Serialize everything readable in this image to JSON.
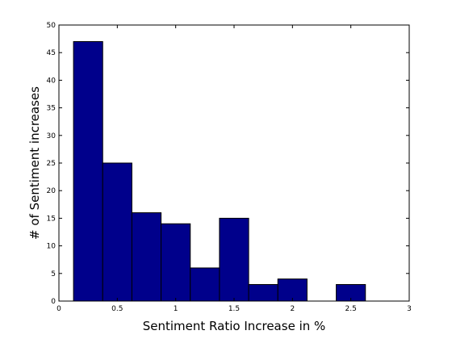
{
  "chart_data": {
    "type": "bar",
    "title": "",
    "xlabel": "Sentiment Ratio Increase in %",
    "ylabel": "# of Sentiment increases",
    "xlim": [
      0,
      3
    ],
    "ylim": [
      0,
      50
    ],
    "x_ticks": [
      "0",
      "0.5",
      "1",
      "1.5",
      "2",
      "2.5",
      "3"
    ],
    "y_ticks": [
      "0",
      "5",
      "10",
      "15",
      "20",
      "25",
      "30",
      "35",
      "40",
      "45",
      "50"
    ],
    "bins": [
      {
        "x_start": 0.125,
        "x_end": 0.375,
        "value": 47
      },
      {
        "x_start": 0.375,
        "x_end": 0.625,
        "value": 25
      },
      {
        "x_start": 0.625,
        "x_end": 0.875,
        "value": 16
      },
      {
        "x_start": 0.875,
        "x_end": 1.125,
        "value": 14
      },
      {
        "x_start": 1.125,
        "x_end": 1.375,
        "value": 6
      },
      {
        "x_start": 1.375,
        "x_end": 1.625,
        "value": 15
      },
      {
        "x_start": 1.625,
        "x_end": 1.875,
        "value": 3
      },
      {
        "x_start": 1.875,
        "x_end": 2.125,
        "value": 4
      },
      {
        "x_start": 2.125,
        "x_end": 2.375,
        "value": 0
      },
      {
        "x_start": 2.375,
        "x_end": 2.625,
        "value": 3
      }
    ],
    "grid": false,
    "legend": "none",
    "bar_color": "#00008b",
    "edge_color": "#000000"
  }
}
